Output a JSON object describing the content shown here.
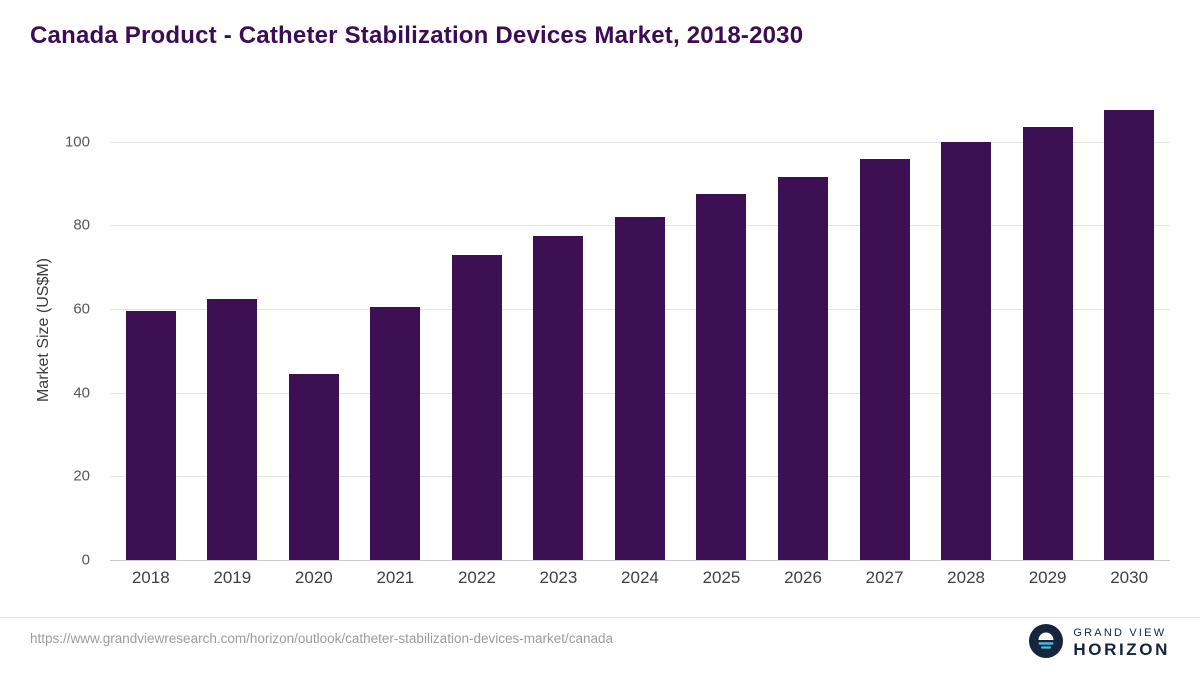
{
  "header": {
    "title": "Canada Product - Catheter Stabilization Devices Market, 2018-2030"
  },
  "chart_data": {
    "type": "bar",
    "title": "Canada Product - Catheter Stabilization Devices Market, 2018-2030",
    "categories": [
      "2018",
      "2019",
      "2020",
      "2021",
      "2022",
      "2023",
      "2024",
      "2025",
      "2026",
      "2027",
      "2028",
      "2029",
      "2030"
    ],
    "values": [
      59.5,
      62.5,
      44.5,
      60.5,
      73,
      77.5,
      82,
      87.5,
      91.5,
      96,
      100,
      103.5,
      107.5
    ],
    "xlabel": "",
    "ylabel": "Market Size (US$M)",
    "ylim": [
      0,
      110
    ],
    "yticks": [
      0,
      20,
      40,
      60,
      80,
      100
    ],
    "bar_color": "#3d1053",
    "grid": "horizontal",
    "legend": "none"
  },
  "footer": {
    "source_url": "https://www.grandviewresearch.com/horizon/outlook/catheter-stabilization-devices-market/canada",
    "logo": {
      "line1": "GRAND VIEW",
      "line2": "HORIZON"
    }
  },
  "colors": {
    "title": "#3a0d55",
    "bar": "#3d1053",
    "gridline": "#e4e4e4",
    "logo_navy": "#16243d",
    "logo_teal": "#45c2e0"
  }
}
